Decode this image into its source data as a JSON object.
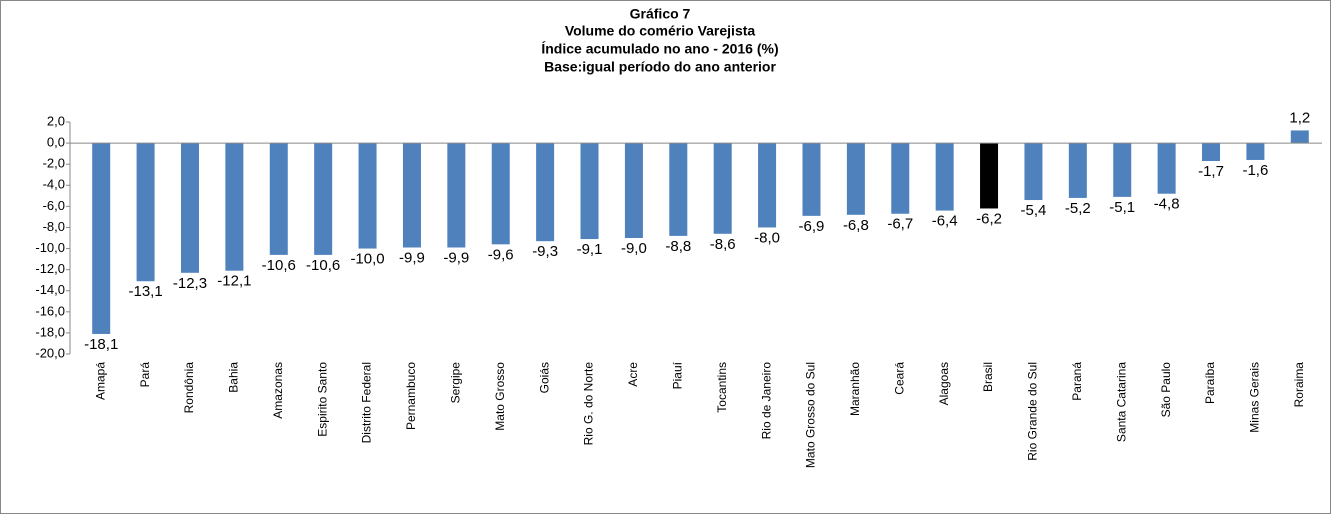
{
  "chart_data": {
    "type": "bar",
    "title": "Gráfico 7",
    "subtitle": [
      "Volume do comério Varejista",
      "Índice acumulado no ano - 2016 (%)",
      "Base:igual período do ano anterior"
    ],
    "categories": [
      "Amapá",
      "Pará",
      "Rondônia",
      "Bahia",
      "Amazonas",
      "Espirito Santo",
      "Distrito Federal",
      "Pernambuco",
      "Sergipe",
      "Mato Grosso",
      "Goiás",
      "Rio G. do Norte",
      "Acre",
      "Piauí",
      "Tocantins",
      "Rio de Janeiro",
      "Mato Grosso do Sul",
      "Maranhão",
      "Ceará",
      "Alagoas",
      "Brasil",
      "Rio Grande do Sul",
      "Paraná",
      "Santa Catarina",
      "São Paulo",
      "Paraíba",
      "Minas Gerais",
      "Roraima"
    ],
    "values": [
      -18.1,
      -13.1,
      -12.3,
      -12.1,
      -10.6,
      -10.6,
      -10.0,
      -9.9,
      -9.9,
      -9.6,
      -9.3,
      -9.1,
      -9.0,
      -8.8,
      -8.6,
      -8.0,
      -6.9,
      -6.8,
      -6.7,
      -6.4,
      -6.2,
      -5.4,
      -5.2,
      -5.1,
      -4.8,
      -1.7,
      -1.6,
      1.2
    ],
    "value_labels": [
      "-18,1",
      "-13,1",
      "-12,3",
      "-12,1",
      "-10,6",
      "-10,6",
      "-10,0",
      "-9,9",
      "-9,9",
      "-9,6",
      "-9,3",
      "-9,1",
      "-9,0",
      "-8,8",
      "-8,6",
      "-8,0",
      "-6,9",
      "-6,8",
      "-6,7",
      "-6,4",
      "-6,2",
      "-5,4",
      "-5,2",
      "-5,1",
      "-4,8",
      "-1,7",
      "-1,6",
      "1,2"
    ],
    "colors": [
      "#4f81bd",
      "#4f81bd",
      "#4f81bd",
      "#4f81bd",
      "#4f81bd",
      "#4f81bd",
      "#4f81bd",
      "#4f81bd",
      "#4f81bd",
      "#4f81bd",
      "#4f81bd",
      "#4f81bd",
      "#4f81bd",
      "#4f81bd",
      "#4f81bd",
      "#4f81bd",
      "#4f81bd",
      "#4f81bd",
      "#4f81bd",
      "#4f81bd",
      "#000000",
      "#4f81bd",
      "#4f81bd",
      "#4f81bd",
      "#4f81bd",
      "#4f81bd",
      "#4f81bd",
      "#4f81bd"
    ],
    "ylim": [
      -20,
      2
    ],
    "yticks": [
      {
        "value": 2,
        "label": "2,0"
      },
      {
        "value": 0,
        "label": "0,0"
      },
      {
        "value": -2,
        "label": "-2,0"
      },
      {
        "value": -4,
        "label": "-4,0"
      },
      {
        "value": -6,
        "label": "-6,0"
      },
      {
        "value": -8,
        "label": "-8,0"
      },
      {
        "value": -10,
        "label": "-10,0"
      },
      {
        "value": -12,
        "label": "-12,0"
      },
      {
        "value": -14,
        "label": "-14,0"
      },
      {
        "value": -16,
        "label": "-16,0"
      },
      {
        "value": -18,
        "label": "-18,0"
      },
      {
        "value": -20,
        "label": "-20,0"
      }
    ],
    "grid": false
  }
}
